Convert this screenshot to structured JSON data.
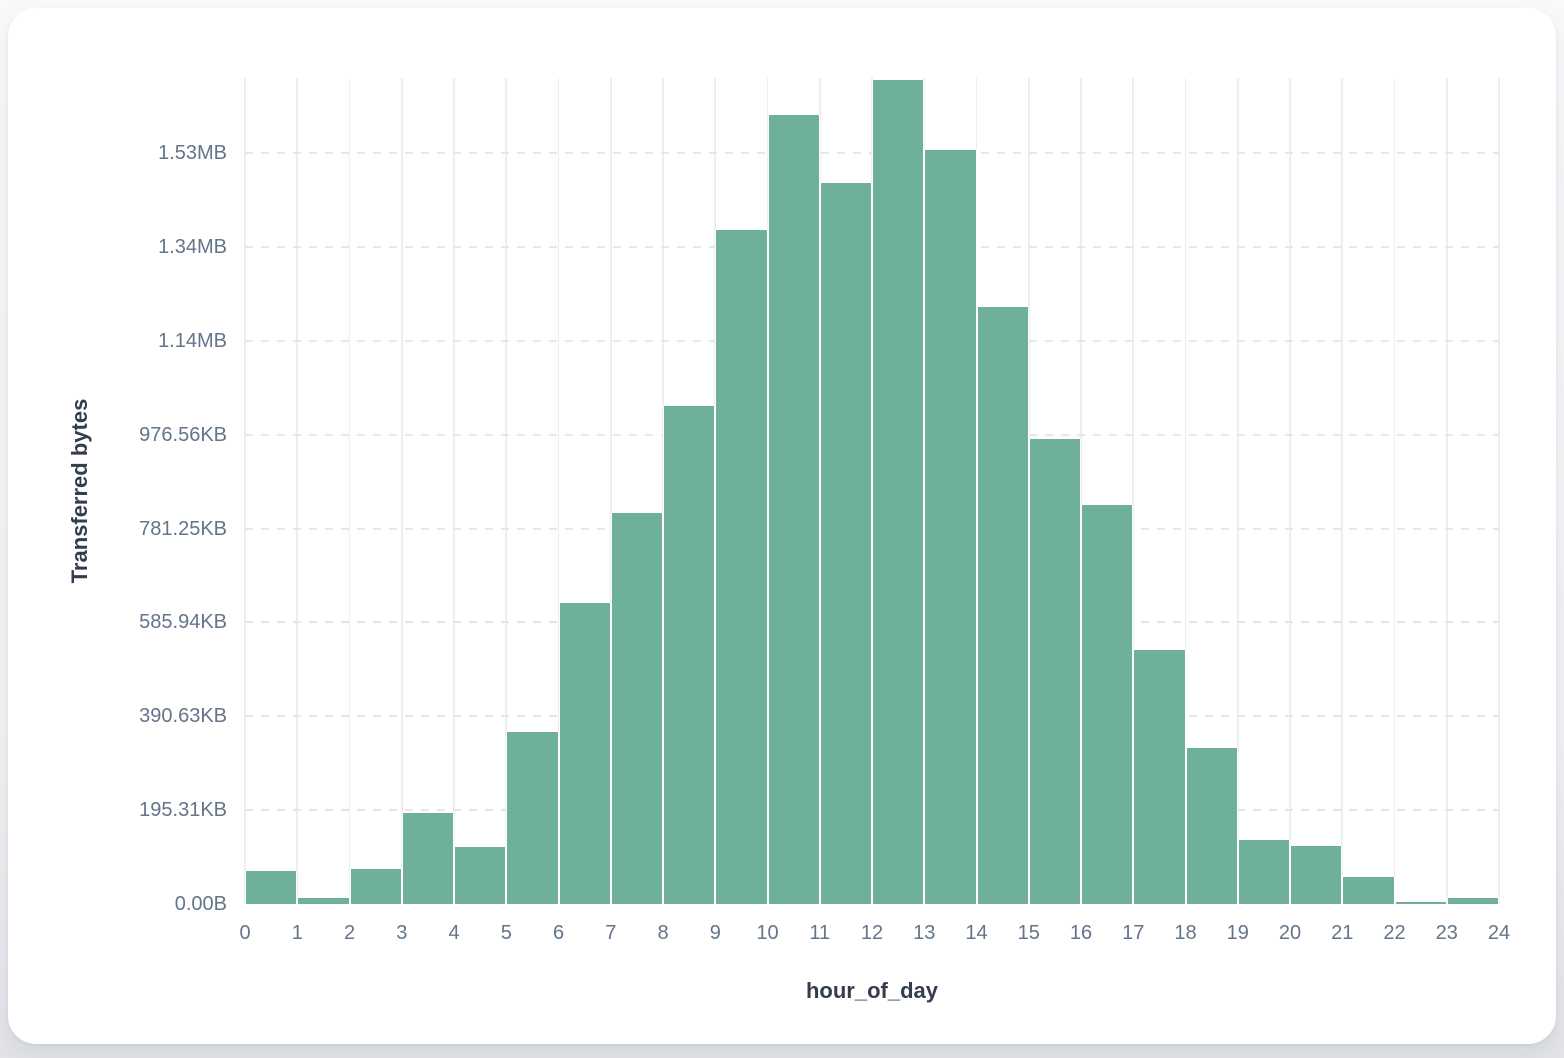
{
  "chart_data": {
    "type": "bar",
    "title": "",
    "xlabel": "hour_of_day",
    "ylabel": "Transferred bytes",
    "categories": [
      0,
      1,
      2,
      3,
      4,
      5,
      6,
      7,
      8,
      9,
      10,
      11,
      12,
      13,
      14,
      15,
      16,
      17,
      18,
      19,
      20,
      21,
      22,
      23
    ],
    "values": [
      70000,
      12500,
      74000,
      193000,
      122000,
      366000,
      641000,
      833000,
      1061000,
      1436000,
      1682000,
      1537000,
      1756000,
      1606000,
      1273000,
      991000,
      851000,
      541000,
      332000,
      137000,
      124000,
      57000,
      4000,
      12000
    ],
    "values_unit": "bytes",
    "ylim": [
      0,
      1760000
    ],
    "y_ticks": [
      {
        "value": 0,
        "label": "0.00B"
      },
      {
        "value": 200000,
        "label": "195.31KB"
      },
      {
        "value": 400000,
        "label": "390.63KB"
      },
      {
        "value": 600000,
        "label": "585.94KB"
      },
      {
        "value": 800000,
        "label": "781.25KB"
      },
      {
        "value": 1000000,
        "label": "976.56KB"
      },
      {
        "value": 1200000,
        "label": "1.14MB"
      },
      {
        "value": 1400000,
        "label": "1.34MB"
      },
      {
        "value": 1600000,
        "label": "1.53MB"
      }
    ],
    "x_tick_labels": [
      "0",
      "1",
      "2",
      "3",
      "4",
      "5",
      "6",
      "7",
      "8",
      "9",
      "10",
      "11",
      "12",
      "13",
      "14",
      "15",
      "16",
      "17",
      "18",
      "19",
      "20",
      "21",
      "22",
      "23",
      "24"
    ],
    "grid": {
      "vertical_lines": "solid",
      "horizontal_lines": "dashed"
    },
    "legend": "none",
    "colors": {
      "bar": "#6eb09b"
    }
  }
}
